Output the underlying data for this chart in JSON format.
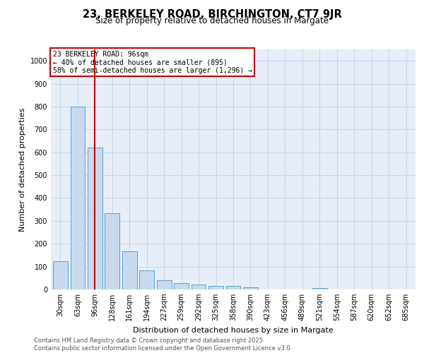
{
  "title": "23, BERKELEY ROAD, BIRCHINGTON, CT7 9JR",
  "subtitle": "Size of property relative to detached houses in Margate",
  "xlabel": "Distribution of detached houses by size in Margate",
  "ylabel": "Number of detached properties",
  "categories": [
    "30sqm",
    "63sqm",
    "96sqm",
    "128sqm",
    "161sqm",
    "194sqm",
    "227sqm",
    "259sqm",
    "292sqm",
    "325sqm",
    "358sqm",
    "390sqm",
    "423sqm",
    "456sqm",
    "489sqm",
    "521sqm",
    "554sqm",
    "587sqm",
    "620sqm",
    "652sqm",
    "685sqm"
  ],
  "values": [
    125,
    800,
    620,
    335,
    168,
    82,
    40,
    27,
    22,
    16,
    14,
    8,
    0,
    0,
    0,
    7,
    0,
    0,
    0,
    0,
    0
  ],
  "bar_color": "#c8d9ee",
  "bar_edge_color": "#5a9fd4",
  "red_line_index": 2,
  "annotation_title": "23 BERKELEY ROAD: 96sqm",
  "annotation_line1": "← 40% of detached houses are smaller (895)",
  "annotation_line2": "58% of semi-detached houses are larger (1,296) →",
  "annotation_box_color": "#ffffff",
  "annotation_box_edge": "#cc0000",
  "red_line_color": "#cc0000",
  "ylim": [
    0,
    1050
  ],
  "yticks": [
    0,
    100,
    200,
    300,
    400,
    500,
    600,
    700,
    800,
    900,
    1000
  ],
  "grid_color": "#c8d4e8",
  "bg_color": "#e8eef8",
  "footer1": "Contains HM Land Registry data © Crown copyright and database right 2025.",
  "footer2": "Contains public sector information licensed under the Open Government Licence v3.0.",
  "title_fontsize": 10.5,
  "subtitle_fontsize": 8.5,
  "xlabel_fontsize": 8,
  "ylabel_fontsize": 8,
  "tick_fontsize": 7,
  "footer_fontsize": 6,
  "ann_fontsize": 7
}
